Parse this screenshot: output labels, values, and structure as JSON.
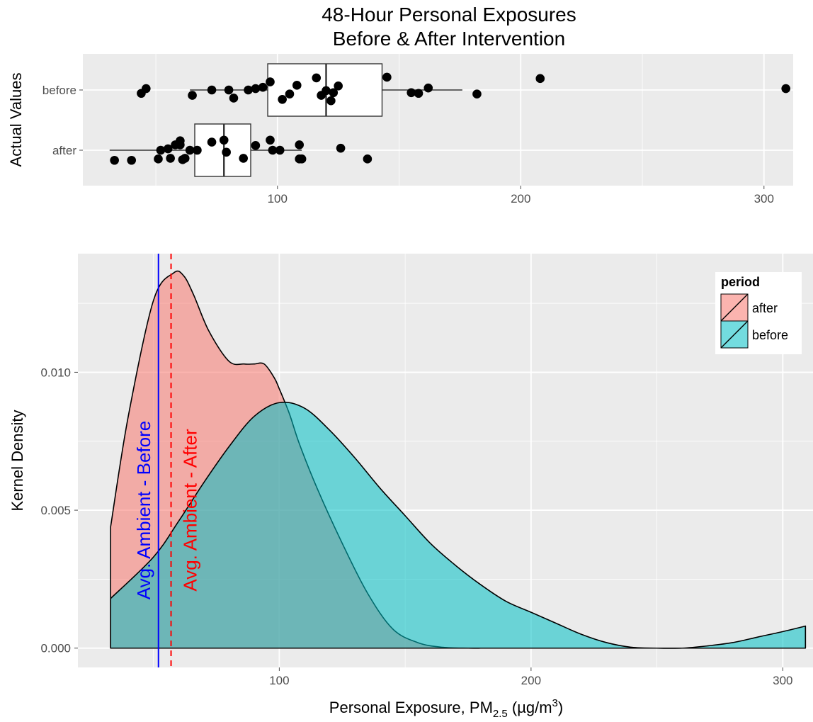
{
  "title_line1": "48-Hour Personal Exposures",
  "title_line2": "Before & After Intervention",
  "colors": {
    "after_fill": "#F8766D",
    "before_fill": "#00BFC4",
    "ambient_before": "#0000FF",
    "ambient_after": "#FF0000",
    "panel": "#EBEBEB",
    "grid": "#FFFFFF"
  },
  "chart_data": [
    {
      "type": "box",
      "title": "48-Hour Personal Exposures\nBefore & After Intervention",
      "ylabel": "Actual Values",
      "xlabel": "",
      "xlim": [
        20,
        312
      ],
      "xticks": [
        100,
        200,
        300
      ],
      "categories": [
        "before",
        "after"
      ],
      "boxes": [
        {
          "name": "before",
          "whisker_low": 64,
          "q1": 96,
          "median": 120,
          "q3": 143,
          "whisker_high": 176
        },
        {
          "name": "after",
          "whisker_low": 31,
          "q1": 66,
          "median": 78,
          "q3": 89,
          "whisker_high": 110
        }
      ],
      "points": {
        "before": [
          [
            44,
            -0.05
          ],
          [
            46,
            0.02
          ],
          [
            65,
            -0.08
          ],
          [
            73,
            0.0
          ],
          [
            80,
            0.0
          ],
          [
            82,
            -0.12
          ],
          [
            88,
            0.0
          ],
          [
            91,
            0.02
          ],
          [
            94,
            0.04
          ],
          [
            97,
            0.12
          ],
          [
            102,
            -0.14
          ],
          [
            105,
            -0.06
          ],
          [
            108,
            0.07
          ],
          [
            116,
            0.18
          ],
          [
            118,
            -0.08
          ],
          [
            120,
            -0.01
          ],
          [
            122,
            -0.16
          ],
          [
            123,
            -0.04
          ],
          [
            125,
            0.06
          ],
          [
            145,
            0.19
          ],
          [
            155,
            -0.04
          ],
          [
            158,
            -0.05
          ],
          [
            162,
            0.03
          ],
          [
            182,
            -0.06
          ],
          [
            208,
            0.17
          ],
          [
            309,
            0.02
          ]
        ],
        "after": [
          [
            33,
            -0.15
          ],
          [
            40,
            -0.15
          ],
          [
            51,
            -0.13
          ],
          [
            52,
            0.0
          ],
          [
            55,
            0.02
          ],
          [
            56,
            -0.12
          ],
          [
            58,
            0.08
          ],
          [
            60,
            0.08
          ],
          [
            60,
            0.14
          ],
          [
            61,
            -0.14
          ],
          [
            62,
            -0.12
          ],
          [
            64,
            0.0
          ],
          [
            67,
            0.0
          ],
          [
            73,
            0.12
          ],
          [
            78,
            0.15
          ],
          [
            79,
            -0.03
          ],
          [
            86,
            -0.12
          ],
          [
            91,
            0.07
          ],
          [
            97,
            0.15
          ],
          [
            98,
            0.0
          ],
          [
            101,
            0.0
          ],
          [
            109,
            -0.13
          ],
          [
            109,
            0.08
          ],
          [
            110,
            -0.13
          ],
          [
            126,
            0.03
          ],
          [
            137,
            -0.13
          ]
        ]
      }
    },
    {
      "type": "area",
      "xlabel": "Personal Exposure, PM2.5 (µg/m3)",
      "ylabel": "Kernel Density",
      "xlim": [
        20,
        312
      ],
      "ylim": [
        -0.0007,
        0.0143
      ],
      "xticks": [
        100,
        200,
        300
      ],
      "yticks": [
        0.0,
        0.005,
        0.01
      ],
      "ytick_labels": [
        "0.000",
        "0.005",
        "0.010"
      ],
      "legend": {
        "title": "period",
        "position": "top-right",
        "entries": [
          "after",
          "before"
        ]
      },
      "series": [
        {
          "name": "after",
          "x": [
            33,
            40,
            50,
            58,
            62,
            66,
            72,
            80,
            86,
            90,
            94,
            98,
            100,
            104,
            108,
            115,
            125,
            135,
            145,
            155,
            165,
            175,
            180
          ],
          "y": [
            0.0044,
            0.0084,
            0.0126,
            0.0136,
            0.0135,
            0.0128,
            0.0115,
            0.0104,
            0.0103,
            0.0103,
            0.0103,
            0.0098,
            0.0094,
            0.0085,
            0.0074,
            0.0058,
            0.0038,
            0.002,
            0.0007,
            0.0002,
            3e-05,
            0.0,
            0.0
          ]
        },
        {
          "name": "before",
          "x": [
            33,
            50,
            60,
            70,
            80,
            90,
            100,
            110,
            120,
            130,
            140,
            150,
            160,
            170,
            180,
            190,
            200,
            210,
            220,
            230,
            240,
            250,
            260,
            270,
            280,
            290,
            300,
            309
          ],
          "y": [
            0.0018,
            0.0033,
            0.0046,
            0.006,
            0.0073,
            0.0084,
            0.0089,
            0.0087,
            0.0079,
            0.0069,
            0.0058,
            0.0048,
            0.0038,
            0.003,
            0.0023,
            0.0017,
            0.0013,
            0.0009,
            0.0005,
            0.0002,
            3e-05,
            0.0,
            0.0,
            8e-05,
            0.0002,
            0.0004,
            0.0006,
            0.0008
          ]
        }
      ],
      "vlines": [
        {
          "label": "Avg. Ambient - Before",
          "x": 52,
          "style": "solid"
        },
        {
          "label": "Avg. Ambient - After",
          "x": 57,
          "style": "dashed"
        }
      ]
    }
  ]
}
